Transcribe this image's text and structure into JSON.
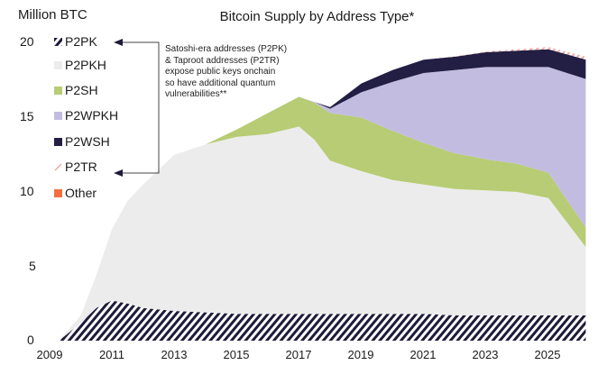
{
  "chart_data": {
    "type": "area",
    "stacked": true,
    "title": "Bitcoin Supply by Address Type*",
    "ylabel": "Million BTC",
    "xlabel": "",
    "ylim": [
      0,
      20
    ],
    "xlim": [
      2009,
      2026.2
    ],
    "yticks": [
      "0",
      "5",
      "10",
      "15",
      "20"
    ],
    "xticks": [
      "2009",
      "2011",
      "2013",
      "2015",
      "2017",
      "2019",
      "2021",
      "2023",
      "2025"
    ],
    "grid": false,
    "legend_position": "upper-left-inside",
    "x": [
      2009.3,
      2010,
      2010.5,
      2011,
      2011.5,
      2012,
      2013,
      2014,
      2015,
      2016,
      2017,
      2017.5,
      2018,
      2019,
      2020,
      2021,
      2022,
      2023,
      2024,
      2025,
      2026.2
    ],
    "series": [
      {
        "name": "P2PK",
        "color": "#1e1b3a",
        "pattern": "diagonal-hatch",
        "values": [
          0.0,
          1.2,
          2.2,
          2.7,
          2.5,
          2.2,
          2.0,
          1.9,
          1.8,
          1.8,
          1.8,
          1.8,
          1.8,
          1.8,
          1.8,
          1.8,
          1.7,
          1.7,
          1.7,
          1.7,
          1.7
        ]
      },
      {
        "name": "P2PKH",
        "color": "#ececec",
        "values": [
          0.0,
          0.5,
          2.2,
          4.8,
          6.9,
          8.3,
          10.5,
          11.3,
          11.9,
          12.1,
          12.6,
          11.7,
          10.3,
          9.6,
          9.0,
          8.7,
          8.5,
          8.4,
          8.3,
          7.9,
          4.6
        ]
      },
      {
        "name": "P2SH",
        "color": "#b7cc74",
        "values": [
          0.0,
          0.0,
          0.0,
          0.0,
          0.0,
          0.0,
          0.0,
          0.0,
          0.5,
          1.4,
          2.0,
          2.5,
          3.2,
          3.6,
          3.3,
          2.8,
          2.4,
          2.1,
          1.9,
          1.7,
          1.3
        ]
      },
      {
        "name": "P2WPKH",
        "color": "#c2bde0",
        "values": [
          0.0,
          0.0,
          0.0,
          0.0,
          0.0,
          0.0,
          0.0,
          0.0,
          0.0,
          0.0,
          0.0,
          0.05,
          0.3,
          1.7,
          3.3,
          4.7,
          5.6,
          6.2,
          6.5,
          7.1,
          10.0
        ]
      },
      {
        "name": "P2WSH",
        "color": "#231e44",
        "values": [
          0.0,
          0.0,
          0.0,
          0.0,
          0.0,
          0.0,
          0.0,
          0.0,
          0.0,
          0.0,
          0.0,
          0.0,
          0.1,
          0.6,
          0.8,
          0.9,
          0.9,
          1.0,
          1.1,
          1.2,
          1.3
        ]
      },
      {
        "name": "P2TR",
        "color": "#f2a8a0",
        "pattern": "diagonal-hatch",
        "values": [
          0,
          0,
          0,
          0,
          0,
          0,
          0,
          0,
          0,
          0,
          0,
          0,
          0,
          0,
          0,
          0,
          0.02,
          0.05,
          0.1,
          0.15,
          0.2
        ]
      },
      {
        "name": "Other",
        "color": "#f2703f",
        "values": [
          0,
          0,
          0,
          0,
          0,
          0,
          0,
          0,
          0,
          0,
          0,
          0,
          0,
          0,
          0,
          0,
          0,
          0,
          0,
          0,
          0
        ]
      }
    ],
    "annotations": [
      {
        "text": "Satoshi-era addresses (P2PK) & Taproot addresses (P2TR) expose public keys onchain so have additional quantum vulnerabilities**",
        "arrows_to": [
          "P2PK",
          "P2TR"
        ]
      }
    ]
  },
  "header": {
    "ylabel": "Million BTC",
    "title": "Bitcoin Supply by Address Type*"
  },
  "legend": [
    {
      "label": "P2PK",
      "color": "#1e1b3a"
    },
    {
      "label": "P2PKH",
      "color": "#ececec"
    },
    {
      "label": "P2SH",
      "color": "#b7cc74"
    },
    {
      "label": "P2WPKH",
      "color": "#c2bde0"
    },
    {
      "label": "P2WSH",
      "color": "#231e44"
    },
    {
      "label": "P2TR",
      "color": "#f2a8a0"
    },
    {
      "label": "Other",
      "color": "#f2703f"
    }
  ],
  "annotation": {
    "line1": "Satoshi-era addresses (P2PK)",
    "line2": "& Taproot addresses (P2TR)",
    "line3": "expose public keys onchain",
    "line4": "so have additional quantum",
    "line5": "vulnerabilities**"
  },
  "axis": {
    "y": [
      "20",
      "15",
      "10",
      "5",
      "0"
    ],
    "x": [
      "2009",
      "2011",
      "2013",
      "2015",
      "2017",
      "2019",
      "2021",
      "2023",
      "2025"
    ]
  }
}
